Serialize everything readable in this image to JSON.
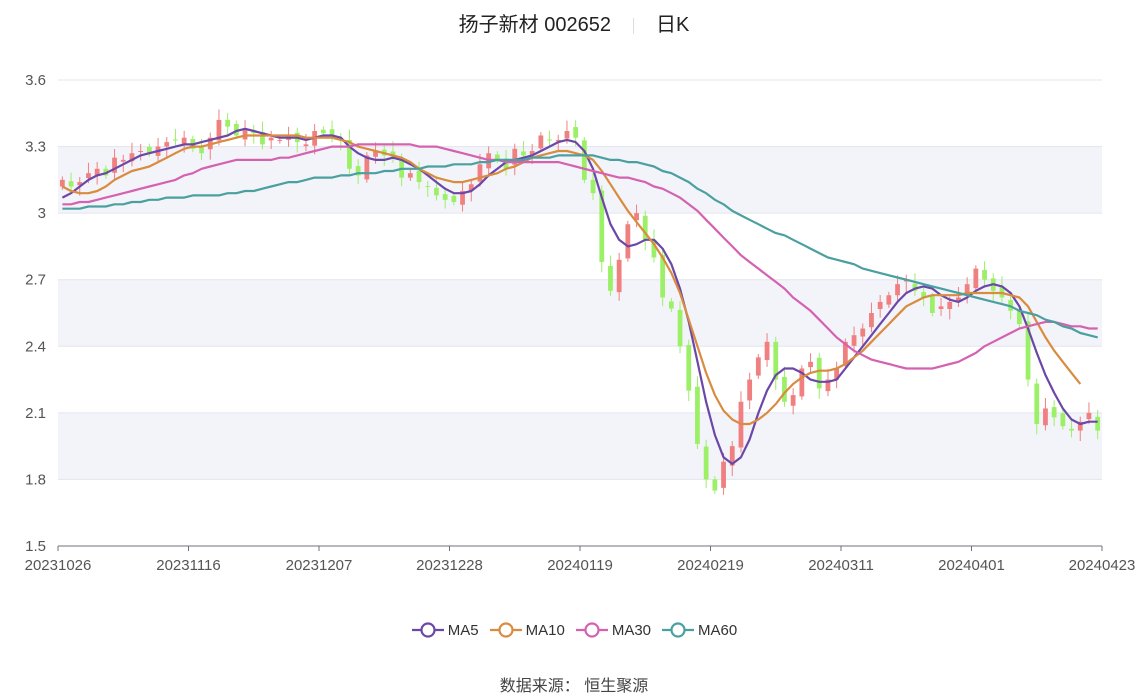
{
  "header": {
    "title": "扬子新材 002652",
    "period": "日K"
  },
  "source": "数据来源：  恒生聚源",
  "chart_data": {
    "type": "candlestick",
    "x_ticks": [
      "20231026",
      "20231116",
      "20231207",
      "20231228",
      "20240119",
      "20240219",
      "20240311",
      "20240401",
      "20240423"
    ],
    "x_tick_index": [
      0,
      15,
      30,
      45,
      60,
      75,
      90,
      105,
      119
    ],
    "n_bars": 120,
    "ylim": [
      1.5,
      3.6
    ],
    "y_ticks": [
      1.5,
      1.8,
      2.1,
      2.4,
      2.7,
      3,
      3.3,
      3.6
    ],
    "grid": true,
    "legend_position": "bottom",
    "colors": {
      "up": "#f08080",
      "down": "#9cf067"
    },
    "close": [
      3.15,
      3.12,
      3.14,
      3.18,
      3.2,
      3.17,
      3.25,
      3.24,
      3.27,
      3.28,
      3.27,
      3.3,
      3.32,
      3.33,
      3.34,
      3.29,
      3.27,
      3.34,
      3.42,
      3.39,
      3.35,
      3.38,
      3.36,
      3.31,
      3.34,
      3.33,
      3.35,
      3.32,
      3.31,
      3.37,
      3.36,
      3.35,
      3.33,
      3.2,
      3.17,
      3.26,
      3.28,
      3.26,
      3.25,
      3.16,
      3.18,
      3.14,
      3.12,
      3.08,
      3.06,
      3.05,
      3.1,
      3.13,
      3.22,
      3.27,
      3.24,
      3.2,
      3.29,
      3.26,
      3.28,
      3.35,
      3.33,
      3.33,
      3.37,
      3.34,
      3.15,
      3.09,
      2.78,
      2.65,
      2.79,
      2.95,
      3.0,
      2.88,
      2.8,
      2.62,
      2.57,
      2.4,
      2.2,
      1.96,
      1.8,
      1.75,
      1.88,
      1.95,
      2.15,
      2.25,
      2.35,
      2.42,
      2.25,
      2.15,
      2.18,
      2.3,
      2.33,
      2.21,
      2.25,
      2.3,
      2.42,
      2.45,
      2.48,
      2.55,
      2.6,
      2.63,
      2.68,
      2.7,
      2.65,
      2.62,
      2.55,
      2.58,
      2.6,
      2.62,
      2.68,
      2.75,
      2.7,
      2.65,
      2.62,
      2.56,
      2.5,
      2.25,
      2.05,
      2.12,
      2.08,
      2.04,
      2.02,
      2.06,
      2.1,
      2.02
    ],
    "series": [
      {
        "name": "MA5",
        "color": "#6b47a8",
        "values": [
          3.07,
          3.09,
          3.12,
          3.15,
          3.17,
          3.18,
          3.2,
          3.22,
          3.24,
          3.26,
          3.27,
          3.28,
          3.29,
          3.3,
          3.31,
          3.31,
          3.32,
          3.33,
          3.34,
          3.35,
          3.37,
          3.38,
          3.37,
          3.36,
          3.35,
          3.34,
          3.34,
          3.34,
          3.33,
          3.34,
          3.35,
          3.35,
          3.34,
          3.3,
          3.27,
          3.25,
          3.24,
          3.24,
          3.25,
          3.24,
          3.22,
          3.2,
          3.17,
          3.14,
          3.11,
          3.09,
          3.09,
          3.1,
          3.13,
          3.17,
          3.2,
          3.23,
          3.24,
          3.25,
          3.26,
          3.28,
          3.3,
          3.32,
          3.33,
          3.32,
          3.28,
          3.2,
          3.07,
          2.95,
          2.88,
          2.85,
          2.86,
          2.88,
          2.88,
          2.84,
          2.77,
          2.66,
          2.51,
          2.33,
          2.15,
          2.0,
          1.9,
          1.87,
          1.9,
          1.98,
          2.1,
          2.2,
          2.27,
          2.3,
          2.3,
          2.28,
          2.25,
          2.24,
          2.24,
          2.25,
          2.3,
          2.35,
          2.4,
          2.45,
          2.5,
          2.55,
          2.6,
          2.64,
          2.66,
          2.67,
          2.66,
          2.63,
          2.61,
          2.6,
          2.62,
          2.65,
          2.67,
          2.68,
          2.67,
          2.64,
          2.58,
          2.48,
          2.37,
          2.27,
          2.19,
          2.12,
          2.07,
          2.05,
          2.06,
          2.06
        ]
      },
      {
        "name": "MA10",
        "color": "#d98b3f",
        "values": [
          3.12,
          3.1,
          3.09,
          3.09,
          3.1,
          3.12,
          3.15,
          3.17,
          3.19,
          3.2,
          3.21,
          3.23,
          3.25,
          3.27,
          3.29,
          3.3,
          3.3,
          3.31,
          3.32,
          3.33,
          3.34,
          3.35,
          3.35,
          3.35,
          3.35,
          3.35,
          3.35,
          3.35,
          3.34,
          3.34,
          3.34,
          3.34,
          3.33,
          3.32,
          3.3,
          3.29,
          3.28,
          3.27,
          3.26,
          3.25,
          3.23,
          3.2,
          3.18,
          3.16,
          3.15,
          3.14,
          3.14,
          3.15,
          3.16,
          3.17,
          3.18,
          3.2,
          3.21,
          3.23,
          3.25,
          3.26,
          3.27,
          3.28,
          3.28,
          3.27,
          3.26,
          3.24,
          3.19,
          3.13,
          3.07,
          3.01,
          2.96,
          2.91,
          2.86,
          2.8,
          2.73,
          2.64,
          2.52,
          2.4,
          2.28,
          2.18,
          2.11,
          2.07,
          2.05,
          2.05,
          2.07,
          2.1,
          2.14,
          2.19,
          2.23,
          2.26,
          2.28,
          2.29,
          2.29,
          2.3,
          2.32,
          2.35,
          2.38,
          2.42,
          2.46,
          2.5,
          2.54,
          2.58,
          2.6,
          2.62,
          2.63,
          2.63,
          2.63,
          2.63,
          2.64,
          2.64,
          2.64,
          2.64,
          2.64,
          2.63,
          2.62,
          2.58,
          2.51,
          2.44,
          2.38,
          2.33,
          2.28,
          2.23
        ]
      },
      {
        "name": "MA30",
        "color": "#d462b0",
        "values": [
          3.04,
          3.04,
          3.05,
          3.05,
          3.06,
          3.07,
          3.08,
          3.09,
          3.1,
          3.11,
          3.12,
          3.13,
          3.14,
          3.15,
          3.17,
          3.18,
          3.2,
          3.21,
          3.22,
          3.23,
          3.24,
          3.24,
          3.24,
          3.24,
          3.24,
          3.25,
          3.25,
          3.26,
          3.27,
          3.28,
          3.29,
          3.3,
          3.3,
          3.3,
          3.31,
          3.31,
          3.31,
          3.31,
          3.31,
          3.31,
          3.31,
          3.3,
          3.3,
          3.3,
          3.29,
          3.28,
          3.27,
          3.26,
          3.25,
          3.24,
          3.24,
          3.23,
          3.23,
          3.23,
          3.23,
          3.23,
          3.23,
          3.23,
          3.22,
          3.21,
          3.2,
          3.19,
          3.18,
          3.17,
          3.16,
          3.16,
          3.15,
          3.14,
          3.12,
          3.11,
          3.09,
          3.07,
          3.04,
          3.01,
          2.97,
          2.93,
          2.89,
          2.85,
          2.81,
          2.78,
          2.75,
          2.72,
          2.69,
          2.66,
          2.62,
          2.59,
          2.56,
          2.52,
          2.48,
          2.44,
          2.41,
          2.38,
          2.36,
          2.34,
          2.33,
          2.32,
          2.31,
          2.3,
          2.3,
          2.3,
          2.3,
          2.31,
          2.32,
          2.33,
          2.35,
          2.37,
          2.4,
          2.42,
          2.44,
          2.46,
          2.48,
          2.49,
          2.5,
          2.51,
          2.51,
          2.5,
          2.49,
          2.49,
          2.48,
          2.48
        ]
      },
      {
        "name": "MA60",
        "color": "#4aa0a0",
        "values": [
          3.02,
          3.02,
          3.02,
          3.03,
          3.03,
          3.03,
          3.04,
          3.04,
          3.05,
          3.05,
          3.06,
          3.06,
          3.07,
          3.07,
          3.07,
          3.08,
          3.08,
          3.08,
          3.08,
          3.09,
          3.09,
          3.1,
          3.1,
          3.11,
          3.12,
          3.13,
          3.14,
          3.14,
          3.15,
          3.16,
          3.16,
          3.16,
          3.17,
          3.17,
          3.18,
          3.18,
          3.18,
          3.19,
          3.19,
          3.2,
          3.2,
          3.2,
          3.21,
          3.21,
          3.21,
          3.22,
          3.22,
          3.22,
          3.23,
          3.23,
          3.24,
          3.24,
          3.24,
          3.24,
          3.25,
          3.25,
          3.25,
          3.26,
          3.26,
          3.26,
          3.26,
          3.26,
          3.25,
          3.24,
          3.24,
          3.23,
          3.23,
          3.22,
          3.21,
          3.19,
          3.18,
          3.16,
          3.14,
          3.11,
          3.09,
          3.06,
          3.04,
          3.01,
          2.99,
          2.97,
          2.95,
          2.93,
          2.91,
          2.9,
          2.88,
          2.86,
          2.84,
          2.82,
          2.8,
          2.79,
          2.78,
          2.77,
          2.75,
          2.74,
          2.73,
          2.72,
          2.71,
          2.7,
          2.69,
          2.68,
          2.67,
          2.66,
          2.65,
          2.64,
          2.63,
          2.62,
          2.61,
          2.6,
          2.59,
          2.58,
          2.56,
          2.55,
          2.54,
          2.52,
          2.51,
          2.49,
          2.48,
          2.46,
          2.45,
          2.44
        ]
      }
    ]
  }
}
